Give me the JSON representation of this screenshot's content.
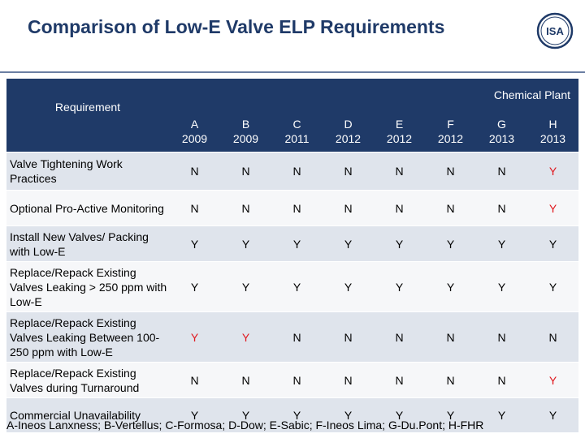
{
  "title": "Comparison of Low-E Valve ELP Requirements",
  "logo": {
    "text": "ISA",
    "color": "#1f3a68"
  },
  "table": {
    "requirement_header": "Requirement",
    "group_header": "Chemical Plant",
    "columns": [
      {
        "letter": "A",
        "year": "2009"
      },
      {
        "letter": "B",
        "year": "2009"
      },
      {
        "letter": "C",
        "year": "2011"
      },
      {
        "letter": "D",
        "year": "2012"
      },
      {
        "letter": "E",
        "year": "2012"
      },
      {
        "letter": "F",
        "year": "2012"
      },
      {
        "letter": "G",
        "year": "2013"
      },
      {
        "letter": "H",
        "year": "2013"
      }
    ],
    "rows": [
      {
        "label": "Valve Tightening Work Practices",
        "values": [
          "N",
          "N",
          "N",
          "N",
          "N",
          "N",
          "N",
          "Y"
        ]
      },
      {
        "label": "Optional Pro-Active Monitoring",
        "values": [
          "N",
          "N",
          "N",
          "N",
          "N",
          "N",
          "N",
          "Y"
        ]
      },
      {
        "label": "Install New Valves/ Packing with Low-E",
        "values": [
          "Y",
          "Y",
          "Y",
          "Y",
          "Y",
          "Y",
          "Y",
          "Y"
        ]
      },
      {
        "label": "Replace/Repack Existing Valves Leaking > 250 ppm with Low-E",
        "values": [
          "Y",
          "Y",
          "Y",
          "Y",
          "Y",
          "Y",
          "Y",
          "Y"
        ]
      },
      {
        "label": "Replace/Repack Existing Valves Leaking Between 100-250 ppm with Low-E",
        "values": [
          "Y",
          "Y",
          "N",
          "N",
          "N",
          "N",
          "N",
          "N"
        ]
      },
      {
        "label": "Replace/Repack Existing Valves during Turnaround",
        "values": [
          "N",
          "N",
          "N",
          "N",
          "N",
          "N",
          "N",
          "Y"
        ]
      },
      {
        "label": "Commercial Unavailability",
        "values": [
          "Y",
          "Y",
          "Y",
          "Y",
          "Y",
          "Y",
          "Y",
          "Y"
        ]
      }
    ]
  },
  "footnote": "A-Ineos Lanxness; B-Vertellus; C-Formosa; D-Dow; E-Sabic; F-Ineos Lima; G-Du.Pont; H-FHR",
  "colors": {
    "header_bg": "#1f3a68",
    "highlight": "#e0191f",
    "row_shade": "#dfe4ec"
  }
}
